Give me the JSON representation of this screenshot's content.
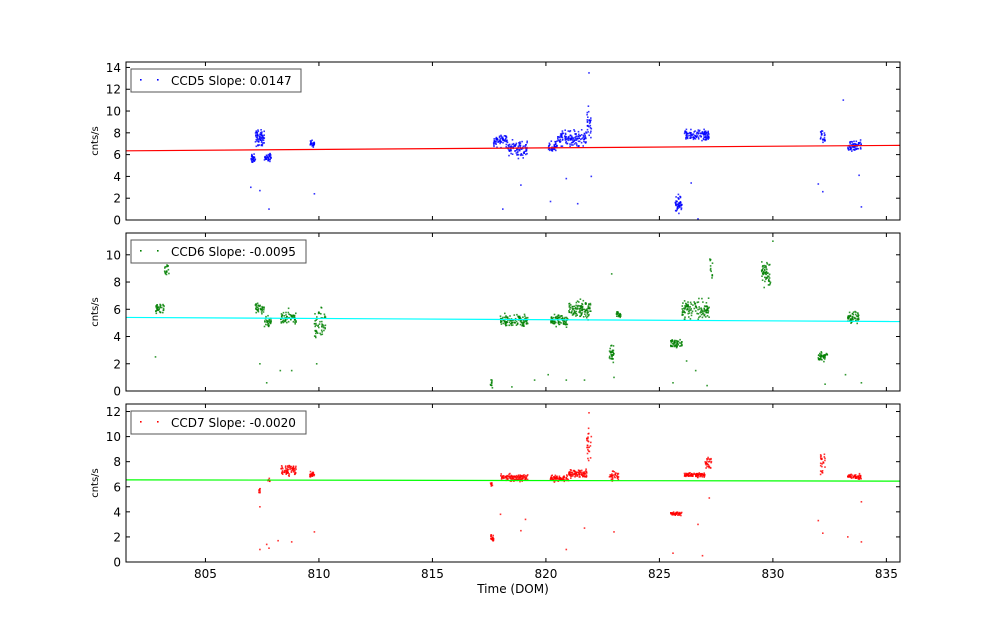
{
  "chart_data": [
    {
      "type": "scatter",
      "legend": "CCD5 Slope: 0.0147",
      "legend_placement": "top-left",
      "ylabel": "cnts/s",
      "xlim": [
        801.5,
        835.6
      ],
      "ylim": [
        0,
        14.5
      ],
      "yticks": [
        0,
        2,
        4,
        6,
        8,
        10,
        12,
        14
      ],
      "point_color": "#0000ff",
      "fit_color": "#ff0000",
      "fit_line": {
        "x": [
          801.5,
          835.6
        ],
        "y": [
          6.35,
          6.85
        ]
      },
      "clusters": [
        {
          "x": [
            807.0,
            807.2
          ],
          "y": [
            5.0,
            6.2
          ],
          "n": 30
        },
        {
          "x": [
            807.2,
            807.6
          ],
          "y": [
            6.5,
            8.6
          ],
          "n": 70
        },
        {
          "x": [
            807.6,
            807.9
          ],
          "y": [
            5.2,
            6.3
          ],
          "n": 35
        },
        {
          "x": [
            809.6,
            809.8
          ],
          "y": [
            6.5,
            7.4
          ],
          "n": 25
        },
        {
          "x": [
            817.7,
            818.3
          ],
          "y": [
            6.5,
            8.2
          ],
          "n": 60
        },
        {
          "x": [
            818.3,
            819.2
          ],
          "y": [
            5.5,
            7.6
          ],
          "n": 90
        },
        {
          "x": [
            820.1,
            820.5
          ],
          "y": [
            6.0,
            7.5
          ],
          "n": 40
        },
        {
          "x": [
            820.5,
            821.8
          ],
          "y": [
            6.5,
            8.5
          ],
          "n": 130
        },
        {
          "x": [
            821.8,
            822.0
          ],
          "y": [
            7.0,
            11.0
          ],
          "n": 30
        },
        {
          "x": [
            825.7,
            826.0
          ],
          "y": [
            0.3,
            2.5
          ],
          "n": 50
        },
        {
          "x": [
            826.1,
            827.2
          ],
          "y": [
            7.0,
            8.5
          ],
          "n": 110
        },
        {
          "x": [
            832.1,
            832.3
          ],
          "y": [
            6.5,
            8.5
          ],
          "n": 25
        },
        {
          "x": [
            833.3,
            833.9
          ],
          "y": [
            6.0,
            7.6
          ],
          "n": 60
        }
      ],
      "outliers": {
        "x": [
          807.0,
          807.4,
          807.8,
          809.8,
          818.1,
          818.9,
          820.2,
          820.9,
          821.4,
          821.9,
          822.0,
          826.4,
          826.7,
          832.0,
          832.2,
          833.1,
          833.8,
          833.9
        ],
        "y": [
          3.0,
          2.7,
          1.0,
          2.4,
          1.0,
          3.2,
          1.7,
          3.8,
          1.5,
          13.5,
          4.0,
          3.4,
          0.1,
          3.3,
          2.6,
          11.0,
          4.1,
          1.2
        ]
      }
    },
    {
      "type": "scatter",
      "legend": "CCD6 Slope: -0.0095",
      "legend_placement": "top-left",
      "ylabel": "cnts/s",
      "xlim": [
        801.5,
        835.6
      ],
      "ylim": [
        0,
        11.6
      ],
      "yticks": [
        0,
        2,
        4,
        6,
        8,
        10
      ],
      "point_color": "#008000",
      "fit_color": "#00ffff",
      "fit_line": {
        "x": [
          801.5,
          835.6
        ],
        "y": [
          5.4,
          5.1
        ]
      },
      "clusters": [
        {
          "x": [
            802.8,
            803.2
          ],
          "y": [
            5.5,
            6.6
          ],
          "n": 35
        },
        {
          "x": [
            803.2,
            803.4
          ],
          "y": [
            8.0,
            10.0
          ],
          "n": 20
        },
        {
          "x": [
            807.2,
            807.6
          ],
          "y": [
            5.5,
            6.6
          ],
          "n": 35
        },
        {
          "x": [
            807.6,
            807.9
          ],
          "y": [
            4.5,
            5.6
          ],
          "n": 30
        },
        {
          "x": [
            808.3,
            809.0
          ],
          "y": [
            4.5,
            6.2
          ],
          "n": 60
        },
        {
          "x": [
            809.8,
            810.3
          ],
          "y": [
            3.5,
            6.5
          ],
          "n": 55
        },
        {
          "x": [
            817.55,
            817.65
          ],
          "y": [
            0.0,
            1.0
          ],
          "n": 10
        },
        {
          "x": [
            818.0,
            819.2
          ],
          "y": [
            4.5,
            5.9
          ],
          "n": 120
        },
        {
          "x": [
            820.2,
            821.0
          ],
          "y": [
            4.5,
            5.8
          ],
          "n": 80
        },
        {
          "x": [
            821.0,
            822.0
          ],
          "y": [
            5.0,
            7.0
          ],
          "n": 110
        },
        {
          "x": [
            822.8,
            823.0
          ],
          "y": [
            2.0,
            3.5
          ],
          "n": 30
        },
        {
          "x": [
            823.1,
            823.3
          ],
          "y": [
            5.0,
            6.2
          ],
          "n": 20
        },
        {
          "x": [
            825.5,
            826.0
          ],
          "y": [
            3.0,
            4.0
          ],
          "n": 50
        },
        {
          "x": [
            826.0,
            827.2
          ],
          "y": [
            5.0,
            7.0
          ],
          "n": 120
        },
        {
          "x": [
            827.2,
            827.35
          ],
          "y": [
            7.5,
            10.0
          ],
          "n": 12
        },
        {
          "x": [
            829.5,
            829.9
          ],
          "y": [
            7.2,
            10.0
          ],
          "n": 55
        },
        {
          "x": [
            832.0,
            832.4
          ],
          "y": [
            2.1,
            3.0
          ],
          "n": 45
        },
        {
          "x": [
            833.3,
            833.8
          ],
          "y": [
            4.8,
            6.0
          ],
          "n": 55
        }
      ],
      "outliers": {
        "x": [
          802.8,
          807.4,
          807.7,
          808.3,
          808.8,
          809.9,
          818.5,
          819.5,
          820.1,
          820.9,
          821.7,
          822.9,
          823.0,
          825.6,
          826.2,
          826.6,
          827.1,
          830.0,
          832.3,
          833.2,
          833.9
        ],
        "y": [
          2.5,
          2.0,
          0.6,
          1.5,
          1.5,
          2.0,
          0.3,
          0.8,
          1.2,
          0.8,
          0.8,
          8.6,
          1.0,
          0.6,
          2.2,
          1.5,
          0.4,
          11.0,
          0.5,
          1.2,
          0.6
        ]
      }
    },
    {
      "type": "scatter",
      "legend": "CCD7 Slope: -0.0020",
      "legend_placement": "top-left",
      "ylabel": "cnts/s",
      "xlabel": "Time (DOM)",
      "xlim": [
        801.5,
        835.6
      ],
      "ylim": [
        0,
        12.6
      ],
      "yticks": [
        0,
        2,
        4,
        6,
        8,
        10,
        12
      ],
      "xticks": [
        805,
        810,
        815,
        820,
        825,
        830,
        835
      ],
      "point_color": "#ff0000",
      "fit_color": "#00ff00",
      "fit_line": {
        "x": [
          801.5,
          835.6
        ],
        "y": [
          6.55,
          6.45
        ]
      },
      "clusters": [
        {
          "x": [
            807.35,
            807.45
          ],
          "y": [
            5.3,
            6.2
          ],
          "n": 8
        },
        {
          "x": [
            807.75,
            807.85
          ],
          "y": [
            6.3,
            6.8
          ],
          "n": 6
        },
        {
          "x": [
            808.3,
            809.0
          ],
          "y": [
            6.7,
            8.0
          ],
          "n": 70
        },
        {
          "x": [
            809.6,
            809.8
          ],
          "y": [
            6.7,
            7.3
          ],
          "n": 25
        },
        {
          "x": [
            817.55,
            817.7
          ],
          "y": [
            1.5,
            2.3
          ],
          "n": 20
        },
        {
          "x": [
            817.55,
            817.65
          ],
          "y": [
            5.8,
            6.6
          ],
          "n": 8
        },
        {
          "x": [
            818.0,
            819.2
          ],
          "y": [
            6.3,
            7.1
          ],
          "n": 110
        },
        {
          "x": [
            820.2,
            821.0
          ],
          "y": [
            6.3,
            7.0
          ],
          "n": 80
        },
        {
          "x": [
            821.0,
            821.8
          ],
          "y": [
            6.6,
            7.5
          ],
          "n": 90
        },
        {
          "x": [
            821.8,
            822.0
          ],
          "y": [
            7.5,
            11.5
          ],
          "n": 25
        },
        {
          "x": [
            822.8,
            823.2
          ],
          "y": [
            6.3,
            7.4
          ],
          "n": 35
        },
        {
          "x": [
            825.5,
            826.0
          ],
          "y": [
            3.6,
            4.1
          ],
          "n": 45
        },
        {
          "x": [
            826.1,
            827.0
          ],
          "y": [
            6.7,
            7.2
          ],
          "n": 100
        },
        {
          "x": [
            827.0,
            827.3
          ],
          "y": [
            7.0,
            8.7
          ],
          "n": 30
        },
        {
          "x": [
            832.1,
            832.3
          ],
          "y": [
            6.5,
            9.2
          ],
          "n": 25
        },
        {
          "x": [
            833.3,
            833.9
          ],
          "y": [
            6.5,
            7.1
          ],
          "n": 55
        }
      ],
      "outliers": {
        "x": [
          807.4,
          807.4,
          807.7,
          807.8,
          808.2,
          808.8,
          809.8,
          818.0,
          818.9,
          819.1,
          820.9,
          821.7,
          821.9,
          823.0,
          825.6,
          826.7,
          826.9,
          827.2,
          832.0,
          832.2,
          833.3,
          833.9,
          833.9
        ],
        "y": [
          4.4,
          1.0,
          1.4,
          1.1,
          1.7,
          1.6,
          2.4,
          3.8,
          2.5,
          3.4,
          1.0,
          2.7,
          11.9,
          2.4,
          0.7,
          3.0,
          0.5,
          5.1,
          3.3,
          2.3,
          2.0,
          1.6,
          4.8
        ]
      }
    }
  ]
}
